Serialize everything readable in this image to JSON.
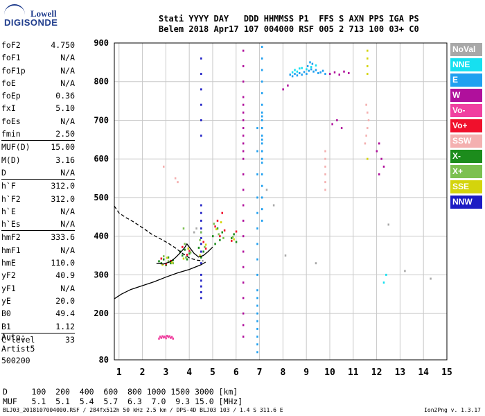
{
  "logo": {
    "line1": "Lowell",
    "line2": "DIGISONDE"
  },
  "header": {
    "line1": "Stati YYYY DAY   DDD HHMMSS P1  FFS S AXN PPS IGA PS",
    "line2": "Belem 2018 Apr17 107 004000 RSF 005 2 713 100 03+ C0"
  },
  "params": [
    {
      "name": "foF2",
      "value": "4.750"
    },
    {
      "name": "foF1",
      "value": "N/A"
    },
    {
      "name": "foF1p",
      "value": "N/A"
    },
    {
      "name": "foE",
      "value": "N/A"
    },
    {
      "name": "foEp",
      "value": "0.36"
    },
    {
      "name": "fxI",
      "value": "5.10"
    },
    {
      "name": "foEs",
      "value": "N/A"
    },
    {
      "name": "fmin",
      "value": "2.50"
    },
    {
      "name": "MUF(D)",
      "value": "15.00"
    },
    {
      "name": "M(D)",
      "value": "3.16"
    },
    {
      "name": "D",
      "value": "N/A"
    },
    {
      "name": "h`F",
      "value": "312.0"
    },
    {
      "name": "h`F2",
      "value": "312.0"
    },
    {
      "name": "h`E",
      "value": "N/A"
    },
    {
      "name": "h`Es",
      "value": "N/A"
    },
    {
      "name": "hmF2",
      "value": "333.6"
    },
    {
      "name": "hmF1",
      "value": "N/A"
    },
    {
      "name": "hmE",
      "value": "110.0"
    },
    {
      "name": "yF2",
      "value": "40.9"
    },
    {
      "name": "yF1",
      "value": "N/A"
    },
    {
      "name": "yE",
      "value": "20.0"
    },
    {
      "name": "B0",
      "value": "49.4"
    },
    {
      "name": "B1",
      "value": "1.12"
    },
    {
      "name": "C-level",
      "value": "33"
    }
  ],
  "auto": {
    "line1": "Auto:",
    "line2": "Artist5",
    "line3": "500200"
  },
  "legend": [
    {
      "label": "NoVal",
      "color": "#a8a8a8"
    },
    {
      "label": "NNE",
      "color": "#16e0f0"
    },
    {
      "label": "E",
      "color": "#1fa0f0"
    },
    {
      "label": "W",
      "color": "#b0109c"
    },
    {
      "label": "Vo-",
      "color": "#f040a0"
    },
    {
      "label": "Vo+",
      "color": "#f0102c"
    },
    {
      "label": "SSW",
      "color": "#f4b0b0"
    },
    {
      "label": "X-",
      "color": "#1c8c1c"
    },
    {
      "label": "X+",
      "color": "#7cc050"
    },
    {
      "label": "SSE",
      "color": "#d4d40c"
    },
    {
      "label": "NNW",
      "color": "#1c1cc4"
    }
  ],
  "dtable": {
    "line1": "D     100  200  400  600  800 1000 1500 3000 [km]",
    "line2": "MUF   5.1  5.1  5.4  5.7  6.3  7.0  9.3 15.0 [MHz]"
  },
  "footer": "BLJ03_2018107004000.RSF / 284fx512h 50 kHz 2.5 km / DPS-4D BLJ03 103 / 1.4 S 311.6 E",
  "version": "Ion2Png v. 1.3.17",
  "chart_data": {
    "type": "scatter",
    "x_ticks": [
      "1",
      "2",
      "3",
      "4",
      "5",
      "6",
      "7",
      "8",
      "9",
      "10",
      "11",
      "12",
      "13",
      "14",
      "15"
    ],
    "y_ticks": [
      "80",
      "200",
      "300",
      "400",
      "500",
      "600",
      "700",
      "800",
      "900"
    ],
    "xlim": [
      0.8,
      15
    ],
    "ylim": [
      80,
      900
    ],
    "y_tick_values": [
      200,
      300,
      400,
      500,
      600,
      700,
      800,
      900
    ],
    "grid": true,
    "series": [
      {
        "color": "#1c1cc4",
        "x": [
          4.5,
          4.5,
          4.5,
          4.5,
          4.5,
          4.5,
          4.5,
          4.5,
          4.5,
          4.5,
          4.5,
          4.5,
          4.5,
          4.5,
          4.5,
          4.5,
          4.5,
          4.5,
          4.5,
          4.5
        ],
        "y": [
          240,
          255,
          270,
          285,
          300,
          330,
          360,
          380,
          395,
          410,
          420,
          440,
          460,
          480,
          660,
          700,
          740,
          780,
          820,
          860
        ]
      },
      {
        "color": "#b0109c",
        "x": [
          6.3,
          6.3,
          6.3,
          6.3,
          6.3,
          6.3,
          6.3,
          6.3,
          6.3,
          6.3,
          6.3,
          6.3,
          6.3,
          6.3,
          6.3,
          6.3,
          6.3,
          6.3,
          6.3,
          6.3,
          6.3,
          6.3,
          6.3,
          6.3
        ],
        "y": [
          140,
          170,
          200,
          240,
          280,
          320,
          360,
          400,
          440,
          480,
          520,
          560,
          600,
          640,
          680,
          720,
          760,
          800,
          840,
          880,
          620,
          660,
          700,
          740
        ]
      },
      {
        "color": "#1fa0f0",
        "x": [
          7.1,
          7.1,
          7.1,
          7.1,
          7.1,
          7.1,
          7.1,
          7.1,
          7.1,
          7.1,
          7.1,
          7.1,
          7.1,
          7.1,
          7.1,
          7.1,
          7.1,
          7.1,
          7.1,
          7.1,
          7.1,
          7.1,
          7.1
        ],
        "y": [
          440,
          470,
          500,
          530,
          560,
          590,
          620,
          650,
          680,
          710,
          740,
          770,
          800,
          830,
          860,
          890,
          600,
          620,
          640,
          660,
          680,
          700,
          720
        ]
      },
      {
        "color": "#1fa0f0",
        "x": [
          6.9,
          6.9,
          6.9,
          6.9,
          6.9,
          6.9,
          6.9,
          6.9,
          6.9,
          6.9,
          6.9,
          6.9,
          6.9,
          6.9,
          6.9,
          6.9,
          6.9,
          6.9
        ],
        "y": [
          100,
          120,
          140,
          160,
          180,
          200,
          220,
          240,
          260,
          300,
          340,
          380,
          420,
          460,
          500,
          560,
          620,
          680
        ]
      },
      {
        "color": "#f040a0",
        "x": [
          2.7,
          2.8,
          2.9,
          3.0,
          3.1,
          3.2,
          3.3,
          2.75,
          2.85,
          2.95,
          3.05,
          3.15,
          3.25
        ],
        "y": [
          135,
          137,
          138,
          136,
          139,
          137,
          135,
          140,
          141,
          140,
          142,
          141,
          139
        ]
      },
      {
        "color": "#1c8c1c",
        "x": [
          2.7,
          2.8,
          2.9,
          3.0,
          3.1,
          3.2,
          3.3,
          3.6,
          3.7,
          3.8,
          3.9,
          4.0,
          4.4,
          4.5,
          4.6,
          5.0,
          5.1,
          5.2,
          5.3,
          5.4,
          5.8,
          5.9,
          6.0
        ],
        "y": [
          335,
          330,
          340,
          325,
          345,
          330,
          338,
          360,
          350,
          365,
          340,
          355,
          370,
          345,
          360,
          400,
          380,
          420,
          390,
          410,
          395,
          405,
          385
        ]
      },
      {
        "color": "#f0102c",
        "x": [
          2.8,
          3.0,
          3.2,
          3.7,
          3.9,
          4.0,
          4.6,
          4.7,
          5.1,
          5.3,
          5.5,
          5.8,
          6.0,
          5.2,
          5.4
        ],
        "y": [
          342,
          328,
          336,
          372,
          352,
          362,
          385,
          368,
          425,
          400,
          415,
          388,
          412,
          440,
          460
        ]
      },
      {
        "color": "#7cc050",
        "x": [
          2.9,
          3.1,
          3.3,
          3.8,
          3.85,
          4.05,
          4.45,
          4.65,
          5.05,
          5.25,
          5.45,
          5.85,
          3.75,
          4.5
        ],
        "y": [
          348,
          335,
          330,
          380,
          345,
          358,
          390,
          372,
          432,
          405,
          395,
          398,
          420,
          410
        ]
      },
      {
        "color": "#d4d40c",
        "x": [
          2.85,
          3.05,
          3.25,
          3.75,
          3.95,
          4.45,
          4.7,
          5.15,
          5.35,
          5.9,
          11.6,
          11.6,
          11.6,
          11.6,
          11.6
        ],
        "y": [
          326,
          344,
          332,
          342,
          368,
          350,
          378,
          418,
          436,
          392,
          820,
          840,
          860,
          880,
          600
        ]
      },
      {
        "color": "#f4b0b0",
        "x": [
          11.5,
          11.55,
          11.6,
          11.65,
          11.6,
          11.55,
          9.8,
          9.8,
          9.8,
          9.8,
          9.8,
          9.8,
          2.9,
          3.4,
          3.5
        ],
        "y": [
          640,
          660,
          680,
          700,
          720,
          740,
          520,
          540,
          560,
          580,
          600,
          620,
          580,
          550,
          540
        ]
      },
      {
        "color": "#1fa0f0",
        "x": [
          8.3,
          8.4,
          8.5,
          8.6,
          8.7,
          8.8,
          8.9,
          9.0,
          9.1,
          9.2,
          9.3,
          9.4,
          9.5,
          9.6,
          9.7,
          9.8,
          9.05,
          9.15,
          9.25
        ],
        "y": [
          818,
          814,
          820,
          816,
          822,
          818,
          825,
          820,
          828,
          832,
          826,
          830,
          822,
          824,
          828,
          820,
          840,
          850,
          846
        ]
      },
      {
        "color": "#16e0f0",
        "x": [
          8.5,
          8.6,
          8.8,
          9.0,
          9.2,
          9.4,
          8.4,
          8.7,
          12.3,
          12.4
        ],
        "y": [
          830,
          826,
          835,
          832,
          838,
          842,
          824,
          834,
          280,
          300
        ]
      },
      {
        "color": "#b0109c",
        "x": [
          10.0,
          10.2,
          10.4,
          10.6,
          10.8,
          10.1,
          10.3,
          10.5,
          12.0,
          12.1,
          12.2,
          12.1,
          12.3,
          8.0,
          8.2
        ],
        "y": [
          820,
          824,
          818,
          826,
          822,
          690,
          700,
          680,
          620,
          640,
          600,
          560,
          580,
          780,
          790
        ]
      },
      {
        "color": "#a8a8a8",
        "x": [
          4.3,
          4.2,
          7.3,
          7.6,
          8.1,
          9.4,
          12.5,
          13.2,
          14.3
        ],
        "y": [
          420,
          410,
          520,
          480,
          350,
          330,
          430,
          310,
          290
        ]
      }
    ],
    "lines": [
      {
        "name": "",
        "style": "solid",
        "color": "#000000",
        "x": [
          0.8,
          1.1,
          1.5,
          2.0,
          2.5,
          3.0,
          3.5,
          4.0,
          4.5,
          4.7
        ],
        "y": [
          238,
          250,
          262,
          272,
          282,
          294,
          305,
          314,
          326,
          333
        ]
      },
      {
        "name": "",
        "style": "dashed",
        "color": "#000000",
        "x": [
          0.8,
          1.0,
          1.3,
          1.6,
          2.0,
          2.4,
          2.8,
          3.1,
          3.4,
          3.7,
          4.0,
          4.3,
          4.6
        ],
        "y": [
          478,
          460,
          448,
          438,
          422,
          405,
          392,
          382,
          370,
          356,
          344,
          338,
          336
        ]
      },
      {
        "name": "",
        "style": "solid",
        "color": "#000000",
        "x": [
          2.6,
          2.9,
          3.2,
          3.4,
          3.6,
          3.8,
          3.9,
          4.0,
          4.2,
          4.4,
          4.6,
          4.8,
          5.0
        ],
        "y": [
          330,
          328,
          334,
          344,
          356,
          370,
          380,
          372,
          356,
          346,
          350,
          360,
          372
        ]
      }
    ]
  }
}
